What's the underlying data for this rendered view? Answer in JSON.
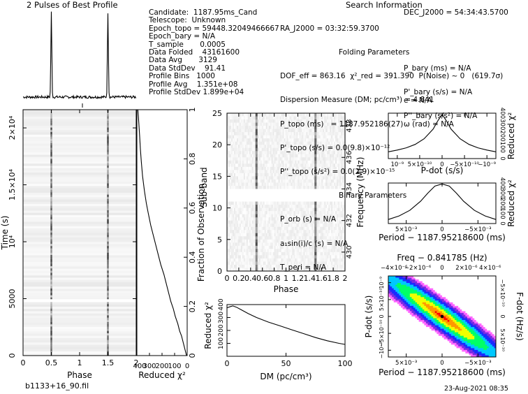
{
  "header": {
    "pulse_title": "2 Pulses of Best Profile",
    "search_title": "Search Information",
    "folding_title": "Folding Parameters",
    "binary_title": "Binary Parameters",
    "filename": "b1133+16_90.fil",
    "timestamp": "23-Aug-2021 08:35"
  },
  "candidate_info": [
    "Candidate:  1187.95ms_Cand",
    "Telescope:  Unknown",
    "Epoch_topo = 59448.32049466667",
    "Epoch_bary = N/A",
    "T_sample       0.0005",
    "Data Folded    43161600",
    "Data Avg       3129",
    "Data StdDev    91.41",
    "Profile Bins   1000",
    "Profile Avg    1.351e+08",
    "Profile StdDev 1.899e+04"
  ],
  "search_info": {
    "ra": "RA_J2000 = 03:32:59.3700",
    "dec": "DEC_J2000 = 54:34:43.5700",
    "dof": "DOF_eff = 863.16  χ²_red = 391.390  P(Noise) ~ 0   (619.7σ)",
    "dm": "Dispersion Measure (DM; pc/cm³) = 4.841",
    "p_topo": "P_topo (ms)   = 1187.952186(27)",
    "pdot_topo": "P'_topo (s/s) = 0.0(9.8)×10⁻¹²",
    "pddot_topo": "P''_topo (s/s²) = 0.0(2.9)×10⁻¹⁵",
    "p_bary": "P_bary (ms) = N/A",
    "pdot_bary": "P'_bary (s/s) = N/A",
    "pddot_bary": "P''_bary (s/s²) = N/A",
    "p_orb": "P_orb (s) = N/A",
    "a1sini": "a₁sin(i)/c (s) = N/A",
    "t_peri": "T_peri = N/A",
    "e": "e = N/A",
    "omega": "ω (rad) = N/A"
  },
  "chart_data": [
    {
      "type": "line",
      "name": "pulse-profile",
      "title": "2 Pulses of Best Profile",
      "x": [
        0,
        0.2,
        0.4,
        0.46,
        0.5,
        0.54,
        0.6,
        0.8,
        1.0,
        1.2,
        1.4,
        1.46,
        1.5,
        1.54,
        1.6,
        1.8,
        2.0
      ],
      "y": [
        0.02,
        0.03,
        0.03,
        0.06,
        1.0,
        0.06,
        0.03,
        0.02,
        0.02,
        0.03,
        0.03,
        0.06,
        1.0,
        0.06,
        0.03,
        0.02,
        0.02
      ],
      "xlim": [
        0,
        2
      ],
      "ylim": [
        0,
        1.05
      ]
    },
    {
      "type": "heatmap",
      "name": "time-vs-phase",
      "xlabel": "Phase",
      "ylabel": "Time (s)",
      "xlim": [
        0,
        2
      ],
      "ylim": [
        0,
        21600
      ],
      "x_ticks": [
        "0",
        "0.5",
        "1",
        "1.5",
        "2"
      ],
      "x_tick_values": [
        0,
        0.5,
        1,
        1.5,
        2
      ],
      "y_ticks": [
        "0",
        "5000",
        "10⁴",
        "1.5×10⁴",
        "2×10⁴"
      ],
      "y_tick_values": [
        0,
        5000,
        10000,
        15000,
        20000
      ],
      "pulse_phases": [
        0.5,
        1.5
      ],
      "gap": [
        4700,
        4950
      ]
    },
    {
      "type": "line",
      "name": "cumulative-chi2",
      "xlabel": "Reduced χ²",
      "ylabel": "Fraction of Observation",
      "xlim": [
        400,
        0
      ],
      "ylim": [
        0,
        1
      ],
      "x_ticks": [
        "400",
        "300",
        "200",
        "100",
        "0"
      ],
      "x_tick_values": [
        400,
        300,
        200,
        100,
        0
      ],
      "y_ticks": [
        "0",
        "0.2",
        "0.4",
        "0.6",
        "0.8",
        "1"
      ],
      "y_tick_values": [
        0,
        0.2,
        0.4,
        0.6,
        0.8,
        1
      ],
      "x": [
        5,
        15,
        30,
        45,
        60,
        75,
        95,
        110,
        130,
        150,
        170,
        185,
        210,
        230,
        250,
        270,
        290,
        310,
        325,
        340,
        355,
        365,
        372,
        378,
        384,
        388,
        392
      ],
      "y": [
        0,
        0.02,
        0.05,
        0.08,
        0.1,
        0.13,
        0.16,
        0.19,
        0.22,
        0.26,
        0.3,
        0.33,
        0.37,
        0.41,
        0.45,
        0.49,
        0.53,
        0.58,
        0.62,
        0.67,
        0.73,
        0.79,
        0.84,
        0.89,
        0.94,
        0.97,
        1.0
      ]
    },
    {
      "type": "heatmap",
      "name": "subband-vs-phase",
      "xlabel": "Phase",
      "ylabel": "Sub-band",
      "y2label": "Frequency (MHz)",
      "xlim": [
        0,
        2
      ],
      "ylim": [
        0,
        25
      ],
      "y2lim": [
        428.8,
        438.8
      ],
      "x_ticks": [
        "0",
        "0.2",
        "0.4",
        "0.6",
        "0.8",
        "1",
        "1.2",
        "1.4",
        "1.6",
        "1.8",
        "2"
      ],
      "x_tick_values": [
        0,
        0.2,
        0.4,
        0.6,
        0.8,
        1,
        1.2,
        1.4,
        1.6,
        1.8,
        2
      ],
      "y_ticks": [
        "0",
        "5",
        "10",
        "15",
        "20",
        "25"
      ],
      "y_tick_values": [
        0,
        5,
        10,
        15,
        20,
        25
      ],
      "y2_ticks": [
        "430",
        "432",
        "434",
        "436",
        "438"
      ],
      "y2_tick_values": [
        430,
        432,
        434,
        436,
        438
      ],
      "pulse_phases": [
        0.5,
        1.5
      ],
      "gap": [
        11,
        13
      ]
    },
    {
      "type": "line",
      "name": "dm-curve",
      "xlabel": "DM (pc/cm³)",
      "ylabel": "Reduced χ²",
      "xlim": [
        0,
        100
      ],
      "ylim": [
        0,
        400
      ],
      "x_ticks": [
        "0",
        "50",
        "100"
      ],
      "x_tick_values": [
        0,
        50,
        100
      ],
      "y_ticks": [
        "100",
        "200",
        "300",
        "400"
      ],
      "y_tick_values": [
        100,
        200,
        300,
        400
      ],
      "x": [
        0,
        3,
        5,
        8,
        12,
        18,
        25,
        35,
        45,
        55,
        65,
        75,
        85,
        95,
        100
      ],
      "y": [
        375,
        385,
        390,
        380,
        360,
        330,
        300,
        265,
        235,
        205,
        175,
        145,
        120,
        100,
        92
      ]
    },
    {
      "type": "line",
      "name": "pdot-curve",
      "xlabel": "P-dot (s/s)",
      "ylabel": "Reduced χ²",
      "xlim": [
        1.2e-09,
        -1.2e-09
      ],
      "ylim": [
        0,
        400
      ],
      "x_ticks": [
        "10⁻⁹",
        "5×10⁻¹⁰",
        "0",
        "−5×10⁻¹⁰",
        "−10⁻⁹"
      ],
      "x_tick_values": [
        1e-09,
        5e-10,
        0,
        -5e-10,
        -1e-09
      ],
      "y_ticks": [
        "0",
        "100",
        "200",
        "300",
        "400"
      ],
      "y_tick_values": [
        0,
        100,
        200,
        300,
        400
      ],
      "x": [
        1.2e-09,
        1e-09,
        8e-10,
        6e-10,
        4e-10,
        2e-10,
        1e-10,
        0,
        -1e-10,
        -2e-10,
        -4e-10,
        -6e-10,
        -8e-10,
        -1e-09,
        -1.2e-09
      ],
      "y": [
        60,
        75,
        95,
        125,
        175,
        260,
        330,
        391,
        330,
        260,
        175,
        125,
        95,
        75,
        60
      ]
    },
    {
      "type": "line",
      "name": "period-curve",
      "xlabel": "Period − 1187.95218600 (ms)",
      "ylabel": "Reduced χ²",
      "xlim": [
        0.0075,
        -0.0075
      ],
      "ylim": [
        0,
        400
      ],
      "x_ticks": [
        "5×10⁻³",
        "0",
        "−5×10⁻³"
      ],
      "x_tick_values": [
        0.005,
        0,
        -0.005
      ],
      "y_ticks": [
        "0",
        "100",
        "200",
        "300",
        "400"
      ],
      "y_tick_values": [
        0,
        100,
        200,
        300,
        400
      ],
      "x": [
        0.0075,
        0.006,
        0.0045,
        0.003,
        0.002,
        0.001,
        0,
        -0.001,
        -0.002,
        -0.003,
        -0.0045,
        -0.006,
        -0.0075
      ],
      "y": [
        40,
        75,
        130,
        220,
        300,
        370,
        391,
        370,
        300,
        220,
        130,
        75,
        40
      ]
    },
    {
      "type": "heatmap",
      "name": "p-pdot-plane",
      "title": "Freq − 0.841785 (Hz)",
      "xlabel": "Period − 1187.95218600 (ms)",
      "ylabel": "P-dot (s/s)",
      "y2label": "F-dot (Hz/s)",
      "xlim": [
        0.0075,
        -0.0075
      ],
      "ylim": [
        -1.2e-09,
        1.2e-09
      ],
      "x_ticks": [
        "5×10⁻³",
        "0",
        "−5×10⁻³"
      ],
      "x_tick_values": [
        0.005,
        0,
        -0.005
      ],
      "x2_ticks": [
        "−4×10⁻⁶",
        "−2×10⁻⁶",
        "0",
        "2×10⁻⁶",
        "4×10⁻⁶"
      ],
      "x2_tick_values": [
        0.0067,
        0.0034,
        0,
        -0.0034,
        -0.0067
      ],
      "y_ticks": [
        "−10⁻⁹",
        "−5×10⁻¹⁰",
        "0",
        "5×10⁻¹⁰",
        "10⁻⁹"
      ],
      "y_tick_values": [
        -1e-09,
        -5e-10,
        0,
        5e-10,
        1e-09
      ],
      "y2_ticks": [
        "5×10⁻¹⁰",
        "0",
        "−5×10⁻¹⁰"
      ],
      "y2_tick_values": [
        -7e-10,
        0,
        7e-10
      ],
      "best": {
        "x": 0,
        "y": 0
      },
      "colors": [
        "#ffffff",
        "#ff66ff",
        "#7a2be2",
        "#1a2bff",
        "#00c8ff",
        "#00ff66",
        "#f0ff00",
        "#ff9900",
        "#ff0000"
      ]
    }
  ]
}
